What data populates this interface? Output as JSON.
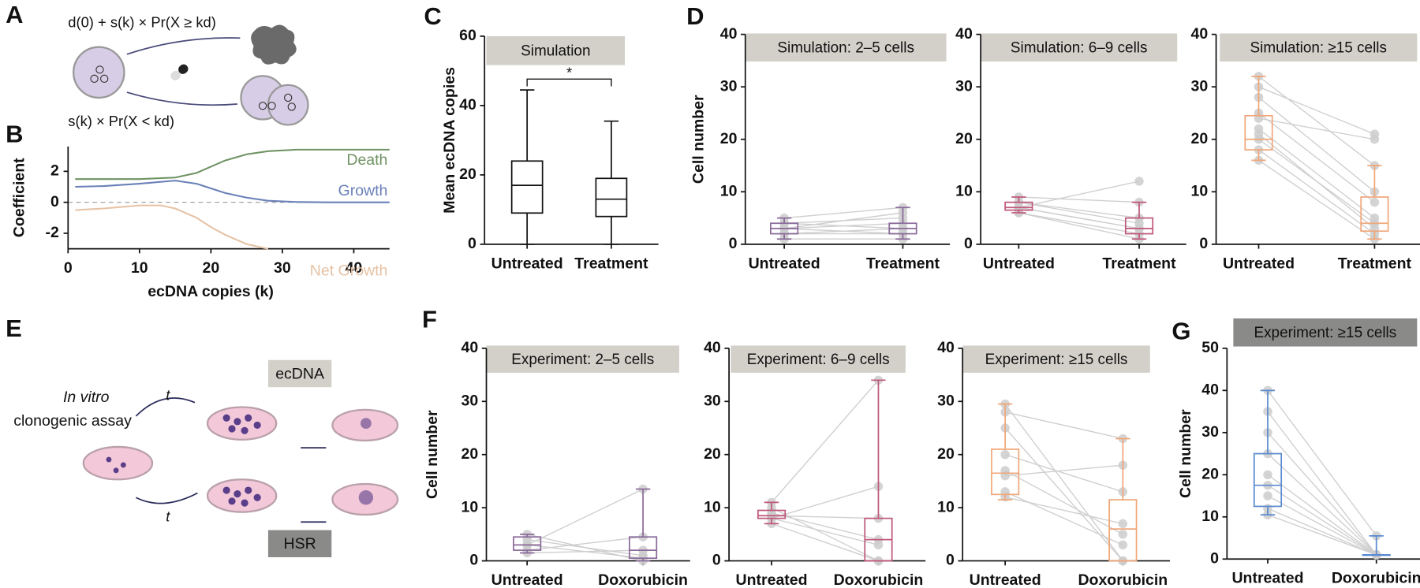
{
  "panel_labels": [
    "A",
    "B",
    "C",
    "D",
    "E",
    "F",
    "G"
  ],
  "panel_a": {
    "top_formula": "d(0) + s(k) × Pr(X ≥ kd)",
    "bottom_formula": "s(k) × Pr(X < kd)"
  },
  "panel_e": {
    "label_line1": "In vitro",
    "label_line2": "clonogenic assay",
    "time_top": "t",
    "time_bottom": "t",
    "ecdna": "ecDNA",
    "hsr": "HSR"
  },
  "chart_data": [
    {
      "type": "line",
      "xlabel": "ecDNA copies (k)",
      "ylabel": "Coefficient",
      "xlim": [
        0,
        45
      ],
      "xticks": [
        0,
        10,
        20,
        30,
        40
      ],
      "ylim": [
        -3,
        3.6
      ],
      "yticks": [
        2,
        0,
        -2
      ],
      "series": [
        {
          "name": "Death",
          "color": "#6f9363",
          "x": [
            1,
            5,
            10,
            15,
            18,
            20,
            22,
            25,
            28,
            32,
            36,
            40,
            45
          ],
          "values": [
            1.5,
            1.5,
            1.5,
            1.6,
            1.9,
            2.3,
            2.7,
            3.1,
            3.3,
            3.4,
            3.4,
            3.4,
            3.4
          ]
        },
        {
          "name": "Growth",
          "color": "#6a80b8",
          "x": [
            1,
            5,
            10,
            15,
            18,
            20,
            22,
            25,
            28,
            32,
            36,
            40,
            45
          ],
          "values": [
            1.0,
            1.05,
            1.2,
            1.4,
            1.2,
            0.9,
            0.6,
            0.3,
            0.1,
            0.02,
            0,
            0,
            0
          ]
        },
        {
          "name": "Net Growth",
          "color": "#e6c2a5",
          "x": [
            1,
            5,
            10,
            13,
            15,
            18,
            20,
            22,
            25,
            28
          ],
          "values": [
            -0.5,
            -0.4,
            -0.2,
            -0.2,
            -0.4,
            -1.0,
            -1.6,
            -2.1,
            -2.7,
            -3.0
          ]
        }
      ]
    },
    {
      "type": "box",
      "title": "Simulation",
      "strip_color": "#d3d0ca",
      "ylabel": "Mean ecDNA copies",
      "annotation": "*",
      "color": "#111111",
      "categories": [
        "Untreated",
        "Treatment"
      ],
      "ylim": [
        0,
        60
      ],
      "yticks": [
        0,
        20,
        40,
        60
      ],
      "boxes": [
        {
          "min": 0,
          "q1": 9,
          "median": 17,
          "q3": 24,
          "max": 44.5
        },
        {
          "min": 0,
          "q1": 8,
          "median": 13,
          "q3": 19,
          "max": 35.5
        }
      ]
    },
    {
      "type": "box",
      "title": "Simulation: 2–5 cells",
      "strip_color": "#d3d0ca",
      "ylabel": "Cell number",
      "color": "#8a6a9a",
      "categories": [
        "Untreated",
        "Treatment"
      ],
      "ylim": [
        0,
        40
      ],
      "yticks": [
        0,
        10,
        20,
        30,
        40
      ],
      "boxes": [
        {
          "min": 1,
          "q1": 2,
          "median": 3,
          "q3": 4,
          "max": 5
        },
        {
          "min": 1,
          "q1": 2,
          "median": 3,
          "q3": 4,
          "max": 7
        }
      ],
      "pairs": [
        [
          3,
          2
        ],
        [
          4,
          5
        ],
        [
          2,
          3
        ],
        [
          3,
          4
        ],
        [
          5,
          7
        ],
        [
          2,
          2
        ],
        [
          4,
          3
        ],
        [
          3,
          6
        ],
        [
          1,
          1
        ]
      ]
    },
    {
      "type": "box",
      "title": "Simulation: 6–9 cells",
      "strip_color": "#d3d0ca",
      "color": "#c0587a",
      "categories": [
        "Untreated",
        "Treatment"
      ],
      "ylim": [
        0,
        40
      ],
      "yticks": [
        0,
        10,
        20,
        30,
        40
      ],
      "boxes": [
        {
          "min": 6,
          "q1": 6.5,
          "median": 7,
          "q3": 8,
          "max": 9
        },
        {
          "min": 1,
          "q1": 2,
          "median": 3,
          "q3": 5,
          "max": 8
        }
      ],
      "pairs": [
        [
          7,
          3
        ],
        [
          8,
          5
        ],
        [
          6,
          2
        ],
        [
          9,
          8
        ],
        [
          7,
          12
        ],
        [
          6,
          1
        ],
        [
          8,
          4
        ],
        [
          7,
          3
        ]
      ]
    },
    {
      "type": "box",
      "title": "Simulation: ≥15 cells",
      "strip_color": "#d3d0ca",
      "color": "#f0a77a",
      "categories": [
        "Untreated",
        "Treatment"
      ],
      "ylim": [
        0,
        40
      ],
      "yticks": [
        0,
        10,
        20,
        30,
        40
      ],
      "boxes": [
        {
          "min": 16,
          "q1": 18,
          "median": 20,
          "q3": 24.5,
          "max": 32
        },
        {
          "min": 1,
          "q1": 2.5,
          "median": 4,
          "q3": 9,
          "max": 15
        }
      ],
      "pairs": [
        [
          32,
          15
        ],
        [
          30,
          21
        ],
        [
          28,
          10
        ],
        [
          25,
          8
        ],
        [
          22,
          5
        ],
        [
          20,
          4
        ],
        [
          18,
          2
        ],
        [
          16,
          1
        ],
        [
          24,
          20
        ],
        [
          21,
          3
        ]
      ]
    },
    {
      "type": "box",
      "title": "Experiment: 2–5 cells",
      "strip_color": "#d3d0ca",
      "ylabel": "Cell number",
      "color": "#8a6a9a",
      "categories": [
        "Untreated",
        "Doxorubicin"
      ],
      "ylim": [
        0,
        40
      ],
      "yticks": [
        0,
        10,
        20,
        30,
        40
      ],
      "boxes": [
        {
          "min": 1.5,
          "q1": 2,
          "median": 3,
          "q3": 4.5,
          "max": 5
        },
        {
          "min": 0,
          "q1": 0.5,
          "median": 2,
          "q3": 4.5,
          "max": 13.5
        }
      ],
      "pairs": [
        [
          3,
          13.5
        ],
        [
          4,
          1
        ],
        [
          2,
          4.5
        ],
        [
          5,
          0
        ],
        [
          1.5,
          2
        ],
        [
          3,
          0.5
        ]
      ]
    },
    {
      "type": "box",
      "title": "Experiment: 6–9 cells",
      "strip_color": "#d3d0ca",
      "color": "#c0587a",
      "categories": [
        "Untreated",
        "Doxorubicin"
      ],
      "ylim": [
        0,
        40
      ],
      "yticks": [
        0,
        10,
        20,
        30,
        40
      ],
      "boxes": [
        {
          "min": 7,
          "q1": 8,
          "median": 8.5,
          "q3": 9.5,
          "max": 11
        },
        {
          "min": 0,
          "q1": 0,
          "median": 4,
          "q3": 8,
          "max": 34
        }
      ],
      "pairs": [
        [
          11,
          34
        ],
        [
          8,
          14
        ],
        [
          9,
          4
        ],
        [
          7,
          0
        ],
        [
          8.5,
          8
        ],
        [
          10,
          0
        ],
        [
          8,
          3
        ]
      ]
    },
    {
      "type": "box",
      "title": "Experiment: ≥15 cells",
      "strip_color": "#d3d0ca",
      "color": "#f0a77a",
      "categories": [
        "Untreated",
        "Doxorubicin"
      ],
      "ylim": [
        0,
        40
      ],
      "yticks": [
        0,
        10,
        20,
        30,
        40
      ],
      "boxes": [
        {
          "min": 11.5,
          "q1": 12.5,
          "median": 16.5,
          "q3": 21,
          "max": 29.5
        },
        {
          "min": 0,
          "q1": 0,
          "median": 6,
          "q3": 11.5,
          "max": 23
        }
      ],
      "pairs": [
        [
          29.5,
          0
        ],
        [
          28,
          23
        ],
        [
          20,
          13
        ],
        [
          16,
          18
        ],
        [
          12,
          7
        ],
        [
          17,
          5
        ],
        [
          25,
          0
        ],
        [
          13,
          3
        ]
      ]
    },
    {
      "type": "box",
      "title": "Experiment: ≥15 cells",
      "strip_color": "#8a8a88",
      "ylabel": "Cell number",
      "color": "#5a8ad0",
      "categories": [
        "Untreated",
        "Doxorubicin"
      ],
      "ylim": [
        0,
        50
      ],
      "yticks": [
        0,
        10,
        20,
        30,
        40,
        50
      ],
      "boxes": [
        {
          "min": 10.5,
          "q1": 12.5,
          "median": 17.5,
          "q3": 25,
          "max": 40
        },
        {
          "min": 1,
          "q1": 1,
          "median": 1,
          "q3": 1,
          "max": 5.5
        }
      ],
      "pairs": [
        [
          40,
          5.5
        ],
        [
          35,
          1
        ],
        [
          30,
          1
        ],
        [
          25,
          1
        ],
        [
          20,
          1
        ],
        [
          17.5,
          1
        ],
        [
          15,
          1
        ],
        [
          12,
          1
        ],
        [
          10.5,
          1
        ]
      ]
    }
  ]
}
